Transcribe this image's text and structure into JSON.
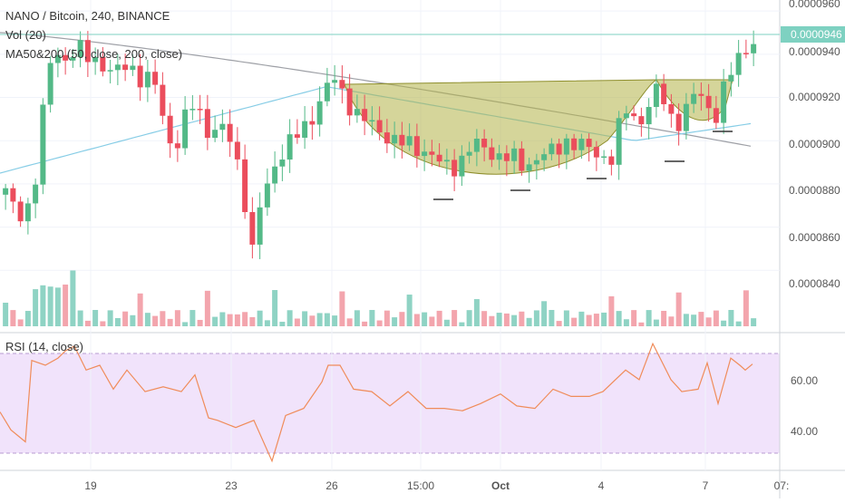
{
  "header": {
    "symbol_line": "NANO / Bitcoin, 240, BINANCE",
    "volume_label": "Vol (20)",
    "ma_label": "MA50&200 (50, close, 200, close)",
    "rsi_label": "RSI (14, close)"
  },
  "price_axis": {
    "ticks": [
      "0.0000960",
      "0.0000940",
      "0.0000920",
      "0.0000900",
      "0.0000880",
      "0.0000860",
      "0.0000840"
    ],
    "current_price": "0.0000946"
  },
  "rsi_axis": {
    "ticks": [
      "60.00",
      "40.00"
    ]
  },
  "time_axis": {
    "ticks": [
      "19",
      "23",
      "26",
      "15:00",
      "Oct",
      "4",
      "7",
      "07:"
    ]
  },
  "colors": {
    "up": "#53b987",
    "down": "#eb4d5c",
    "vol_up": "#8fd3c4",
    "vol_down": "#f3a5ad",
    "ma50": "#9ea0a6",
    "ma200": "#87cde6",
    "pattern_fill": "#b3b347",
    "rsi_line": "#f08c5a",
    "rsi_band": "#f1e3fb",
    "current_price_line": "#7ed1c1"
  },
  "chart_data": {
    "type": "candlestick",
    "price_range": [
      8.225e-05,
      9.63e-05
    ],
    "rsi_range": [
      25,
      78
    ],
    "rsi_levels": [
      70,
      30
    ]
  }
}
